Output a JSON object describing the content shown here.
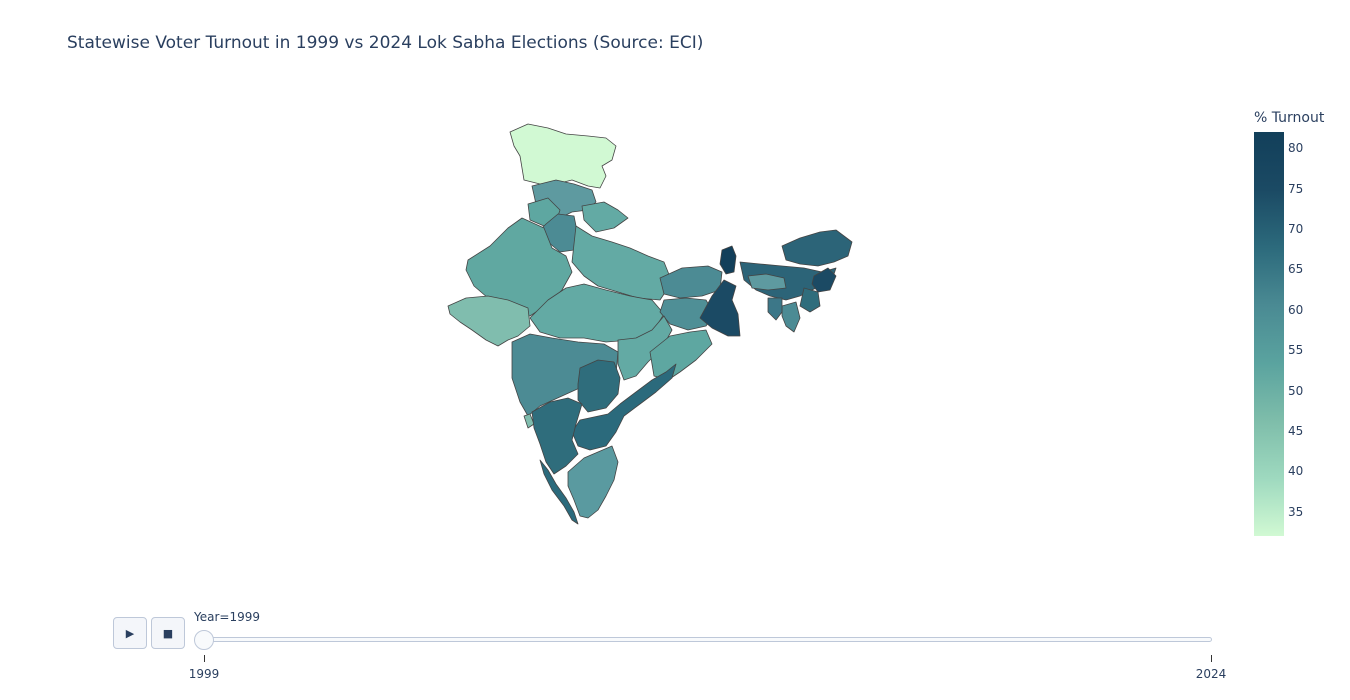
{
  "title": "Statewise Voter Turnout in 1999 vs 2024 Lok Sabha Elections (Source: ECI)",
  "colorbar": {
    "title": "% Turnout",
    "ticks": [
      "80",
      "75",
      "70",
      "65",
      "60",
      "55",
      "50",
      "45",
      "40",
      "35"
    ],
    "range": [
      32,
      82
    ],
    "colors": [
      "#d1f9d3",
      "#9ed9bf",
      "#7ebdaa",
      "#5aa39f",
      "#4a8a93",
      "#2c6a7c",
      "#1b4a64",
      "#123f5a"
    ]
  },
  "controls": {
    "play_icon": "play-icon",
    "stop_icon": "stop-icon",
    "play_glyph": "▶",
    "stop_glyph": "■"
  },
  "slider": {
    "label": "Year=1999",
    "steps": [
      "1999",
      "2024"
    ],
    "active": "1999"
  },
  "map": {
    "region": "India",
    "year": "1999",
    "state_turnout": {
      "Jammu & Kashmir": 32,
      "Punjab": 56,
      "Himachal Pradesh": 58,
      "Haryana": 64,
      "Uttarakhand": 56,
      "Rajasthan": 54,
      "Uttar Pradesh": 54,
      "Gujarat": 48,
      "Madhya Pradesh": 54,
      "Bihar": 61,
      "Jharkhand": 60,
      "West Bengal": 74,
      "Sikkim": 80,
      "Odisha": 56,
      "Chhattisgarh": 56,
      "Maharashtra": 61,
      "Telangana": 67,
      "Andhra Pradesh": 69,
      "Karnataka": 67,
      "Goa": 50,
      "Kerala": 70,
      "Tamil Nadu": 58,
      "Arunachal Pradesh": 72,
      "Assam": 71,
      "Meghalaya": 53,
      "Nagaland": 76,
      "Manipur": 67,
      "Mizoram": 63,
      "Tripura": 66
    }
  }
}
